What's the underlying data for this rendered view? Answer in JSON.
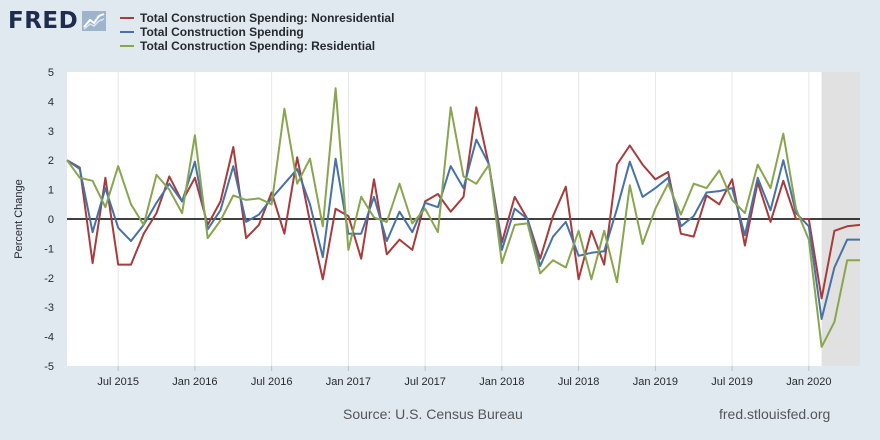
{
  "brand": {
    "logo_text": "FRED",
    "logo_icon": "line-chart-icon",
    "colors": {
      "text": "#1d2c4f",
      "icon_bg": "#9db4cc"
    }
  },
  "legend": [
    {
      "label": "Total Construction Spending: Nonresidential",
      "color": "#a83b3b"
    },
    {
      "label": "Total Construction Spending",
      "color": "#4572a7"
    },
    {
      "label": "Total Construction Spending: Residential",
      "color": "#89a54e"
    }
  ],
  "footer": {
    "source": "Source: U.S. Census Bureau",
    "url": "fred.stlouisfed.org"
  },
  "chart_data": {
    "type": "line",
    "ylabel": "Percent Change",
    "ylim": [
      -5,
      5
    ],
    "yticks": [
      5,
      4,
      3,
      2,
      1,
      0,
      -1,
      -2,
      -3,
      -4,
      -5
    ],
    "xlim": [
      "2015-03",
      "2020-05"
    ],
    "xticks": [
      {
        "label": "Jul 2015",
        "date": "2015-07"
      },
      {
        "label": "Jan 2016",
        "date": "2016-01"
      },
      {
        "label": "Jul 2016",
        "date": "2016-07"
      },
      {
        "label": "Jan 2017",
        "date": "2017-01"
      },
      {
        "label": "Jul 2017",
        "date": "2017-07"
      },
      {
        "label": "Jan 2018",
        "date": "2018-01"
      },
      {
        "label": "Jul 2018",
        "date": "2018-07"
      },
      {
        "label": "Jan 2019",
        "date": "2019-01"
      },
      {
        "label": "Jul 2019",
        "date": "2019-07"
      },
      {
        "label": "Jan 2020",
        "date": "2020-01"
      }
    ],
    "recession_shading": {
      "start": "2020-02",
      "end": "2020-05",
      "color": "#e1e1e1"
    },
    "zero_line": true,
    "grid": "vertical",
    "x": [
      "2015-03",
      "2015-04",
      "2015-05",
      "2015-06",
      "2015-07",
      "2015-08",
      "2015-09",
      "2015-10",
      "2015-11",
      "2015-12",
      "2016-01",
      "2016-02",
      "2016-03",
      "2016-04",
      "2016-05",
      "2016-06",
      "2016-07",
      "2016-08",
      "2016-09",
      "2016-10",
      "2016-11",
      "2016-12",
      "2017-01",
      "2017-02",
      "2017-03",
      "2017-04",
      "2017-05",
      "2017-06",
      "2017-07",
      "2017-08",
      "2017-09",
      "2017-10",
      "2017-11",
      "2017-12",
      "2018-01",
      "2018-02",
      "2018-03",
      "2018-04",
      "2018-05",
      "2018-06",
      "2018-07",
      "2018-08",
      "2018-09",
      "2018-10",
      "2018-11",
      "2018-12",
      "2019-01",
      "2019-02",
      "2019-03",
      "2019-04",
      "2019-05",
      "2019-06",
      "2019-07",
      "2019-08",
      "2019-09",
      "2019-10",
      "2019-11",
      "2019-12",
      "2020-01",
      "2020-02",
      "2020-03",
      "2020-04",
      "2020-05"
    ],
    "series": [
      {
        "name": "Total Construction Spending: Nonresidential",
        "color": "#a83b3b",
        "values": [
          2.0,
          1.75,
          -1.5,
          1.4,
          -1.55,
          -1.55,
          -0.5,
          0.2,
          1.45,
          0.6,
          1.4,
          -0.2,
          0.6,
          2.45,
          -0.65,
          -0.2,
          0.9,
          -0.5,
          2.1,
          -0.1,
          -2.05,
          0.35,
          0.1,
          -1.35,
          1.35,
          -1.2,
          -0.7,
          -1.05,
          0.6,
          0.85,
          0.25,
          0.75,
          3.8,
          1.8,
          -0.8,
          0.75,
          0.0,
          -1.35,
          0.1,
          1.1,
          -2.05,
          -0.4,
          -1.55,
          1.85,
          2.5,
          1.85,
          1.35,
          1.6,
          -0.5,
          -0.6,
          0.8,
          0.5,
          1.35,
          -0.9,
          1.25,
          -0.1,
          1.3,
          0.0,
          0.0,
          -2.7,
          -0.4,
          -0.25,
          -0.2
        ]
      },
      {
        "name": "Total Construction Spending",
        "color": "#4572a7",
        "values": [
          2.0,
          1.7,
          -0.45,
          1.05,
          -0.3,
          -0.75,
          -0.2,
          0.55,
          1.2,
          0.6,
          1.95,
          -0.35,
          0.3,
          1.8,
          -0.1,
          0.15,
          0.7,
          1.2,
          1.7,
          0.5,
          -1.3,
          2.05,
          -0.5,
          -0.5,
          0.75,
          -0.75,
          0.25,
          -0.45,
          0.55,
          0.4,
          1.8,
          1.05,
          2.7,
          1.85,
          -1.05,
          0.35,
          0.0,
          -1.6,
          -0.6,
          -0.1,
          -1.25,
          -1.15,
          -1.1,
          0.35,
          1.95,
          0.75,
          1.05,
          1.4,
          -0.25,
          0.1,
          0.9,
          0.95,
          1.05,
          -0.55,
          1.4,
          0.3,
          2.0,
          0.2,
          -0.25,
          -3.4,
          -1.65,
          -0.7,
          -0.7
        ]
      },
      {
        "name": "Total Construction Spending: Residential",
        "color": "#89a54e",
        "values": [
          2.0,
          1.4,
          1.3,
          0.4,
          1.8,
          0.5,
          -0.2,
          1.5,
          1.0,
          0.2,
          2.85,
          -0.65,
          -0.05,
          0.8,
          0.65,
          0.7,
          0.5,
          3.75,
          1.2,
          2.05,
          -0.25,
          4.45,
          -1.05,
          0.75,
          0.05,
          -0.1,
          1.2,
          -0.15,
          0.35,
          -0.45,
          3.8,
          1.45,
          1.2,
          1.85,
          -1.5,
          -0.2,
          -0.15,
          -1.85,
          -1.4,
          -1.65,
          -0.4,
          -2.05,
          -0.4,
          -2.15,
          1.15,
          -0.85,
          0.35,
          1.2,
          0.15,
          1.2,
          1.05,
          1.65,
          0.65,
          0.2,
          1.85,
          1.05,
          2.9,
          0.35,
          -0.7,
          -4.35,
          -3.5,
          -1.4,
          -1.4
        ]
      }
    ]
  }
}
